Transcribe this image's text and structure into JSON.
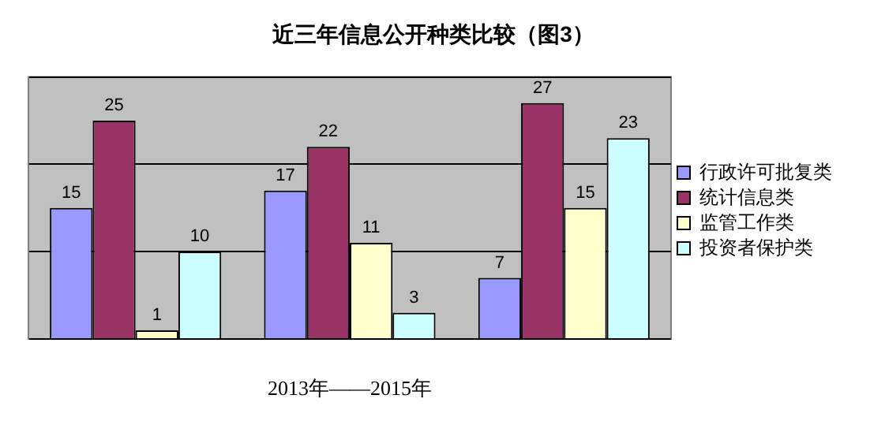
{
  "chart_data": {
    "type": "bar",
    "title": "近三年信息公开种类比较（图3）",
    "xlabel": "2013年——2015年",
    "categories": [
      null,
      null,
      null
    ],
    "series": [
      {
        "name": "行政许可批复类",
        "color": "#9999ff",
        "values": [
          15,
          17,
          7
        ]
      },
      {
        "name": "统计信息类",
        "color": "#993366",
        "values": [
          25,
          22,
          27
        ]
      },
      {
        "name": "监管工作类",
        "color": "#ffffcc",
        "values": [
          1,
          11,
          15
        ]
      },
      {
        "name": "投资者保护类",
        "color": "#ccffff",
        "values": [
          10,
          3,
          23
        ]
      }
    ],
    "ylim": [
      0,
      30
    ],
    "yticks": [
      {
        "value": 0,
        "label": null
      },
      {
        "value": 10,
        "label": null
      },
      {
        "value": 20,
        "label": null
      },
      {
        "value": 30,
        "label": null
      }
    ],
    "grid": "y",
    "legend": "right",
    "data_labels": true
  }
}
